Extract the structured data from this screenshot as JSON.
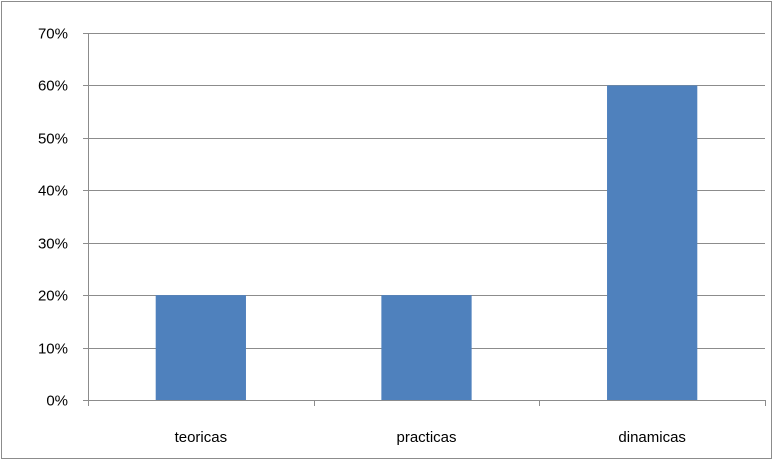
{
  "chart_data": {
    "type": "bar",
    "title": "",
    "xlabel": "",
    "ylabel": "",
    "categories": [
      "teoricas",
      "practicas",
      "dinamicas"
    ],
    "values": [
      20,
      20,
      60
    ],
    "value_format": "percent",
    "ylim": [
      0,
      70
    ],
    "yticks": [
      0,
      10,
      20,
      30,
      40,
      50,
      60,
      70
    ],
    "ytick_labels": [
      "0%",
      "10%",
      "20%",
      "30%",
      "40%",
      "50%",
      "60%",
      "70%"
    ],
    "grid": true,
    "legend": "none",
    "colors": {
      "bar": "#4f81bd",
      "grid": "#8c8c8c",
      "axis": "#8c8c8c"
    }
  }
}
